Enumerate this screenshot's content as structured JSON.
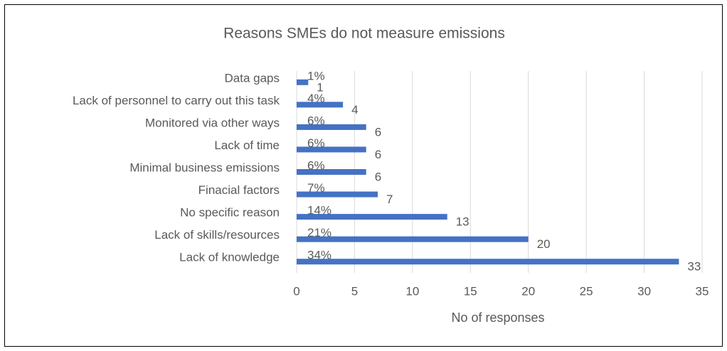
{
  "chart_data": {
    "type": "bar",
    "orientation": "horizontal",
    "title": "Reasons SMEs do not measure emissions",
    "x_label": "No of responses",
    "categories": [
      "Data gaps",
      "Lack of personnel to carry out this task",
      "Monitored via other ways",
      "Lack of time",
      "Minimal business emissions",
      "Finacial factors",
      "No specific reason",
      "Lack of skills/resources",
      "Lack of knowledge"
    ],
    "values": [
      1,
      4,
      6,
      6,
      6,
      7,
      13,
      20,
      33
    ],
    "percent_labels": [
      "1%",
      "4%",
      "6%",
      "6%",
      "6%",
      "7%",
      "14%",
      "21%",
      "34%"
    ],
    "color": "#4472c4",
    "xlim": [
      0,
      35
    ],
    "xticks": [
      0,
      5,
      10,
      15,
      20,
      25,
      30,
      35
    ],
    "grid": true
  }
}
